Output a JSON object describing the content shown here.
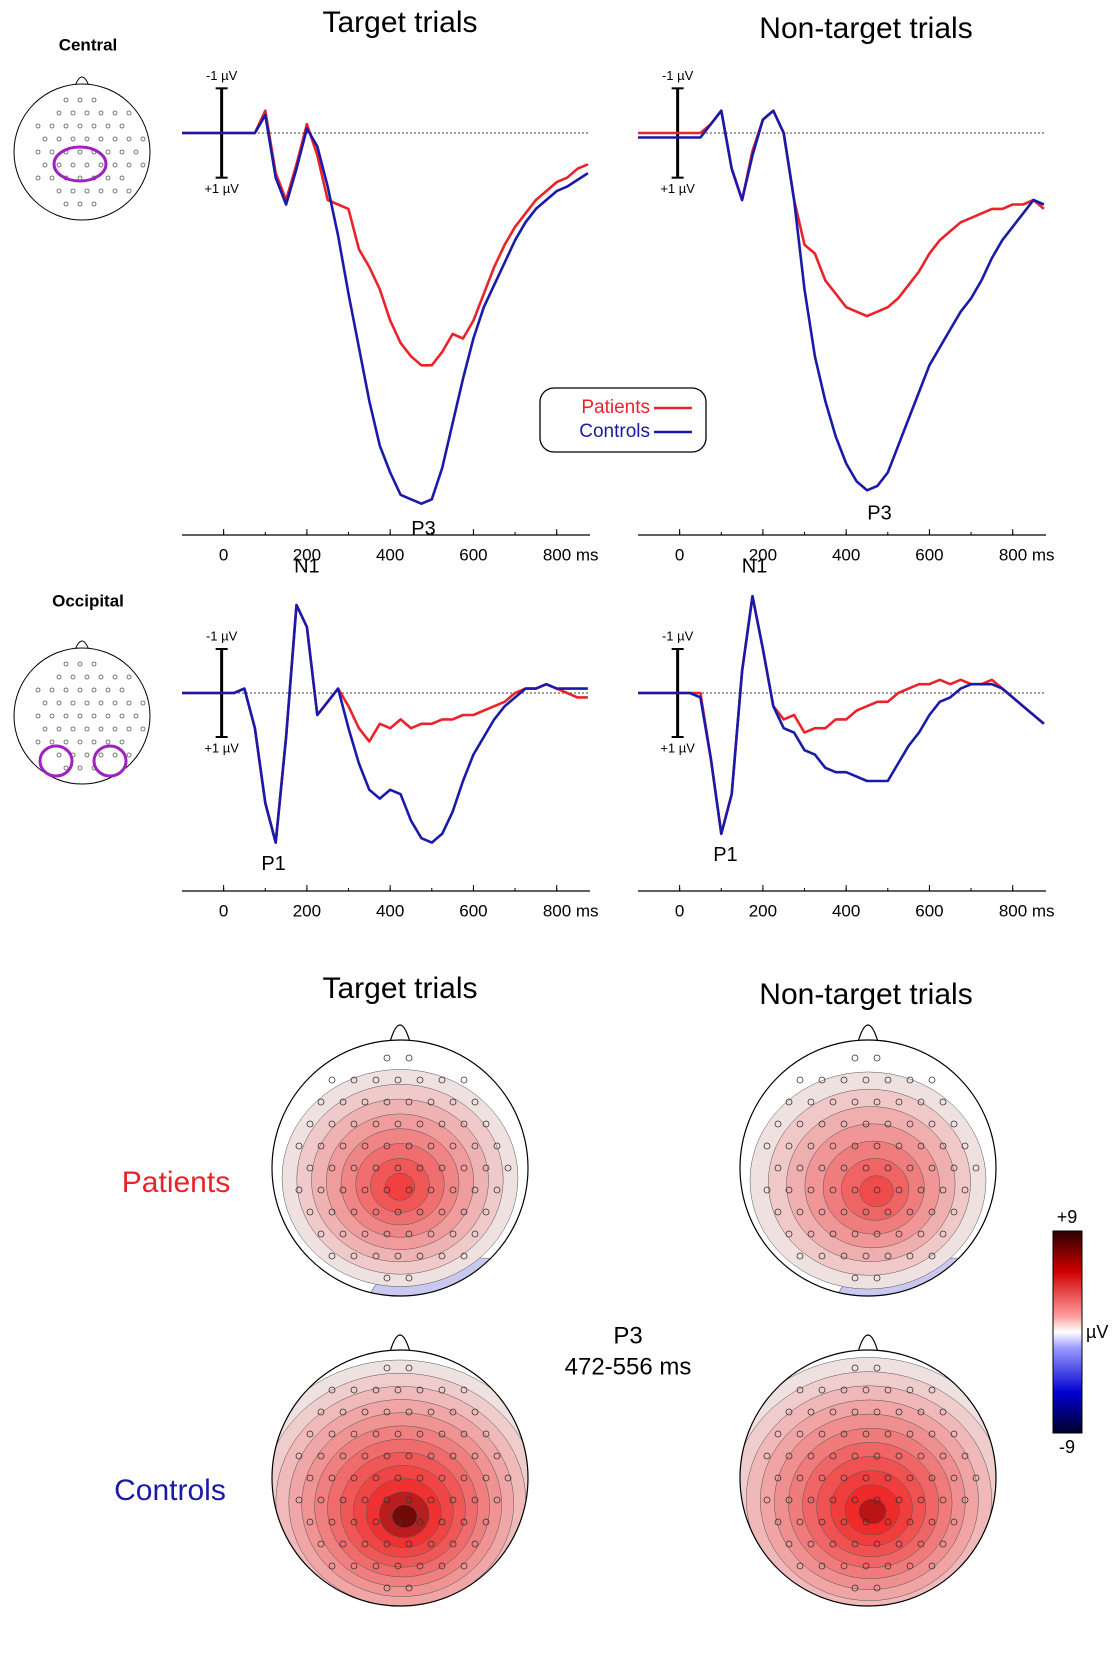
{
  "column_titles": [
    "Target trials",
    "Non-target trials"
  ],
  "row_titles": [
    "Central",
    "Occipital"
  ],
  "chart_data": [
    {
      "type": "line",
      "legend": true,
      "y_inverted": true,
      "x": [
        -100,
        -75,
        -50,
        -25,
        0,
        25,
        50,
        75,
        100,
        125,
        150,
        175,
        200,
        225,
        250,
        275,
        300,
        325,
        350,
        375,
        400,
        425,
        450,
        475,
        500,
        525,
        550,
        575,
        600,
        625,
        650,
        675,
        700,
        725,
        750,
        775,
        800,
        825,
        850,
        875
      ],
      "series": [
        {
          "name": "Patients",
          "color": "#e8242a",
          "values": [
            0,
            0,
            0,
            0,
            0,
            0,
            0,
            0,
            -0.5,
            0.9,
            1.5,
            0.7,
            -0.2,
            0.5,
            1.5,
            1.6,
            1.7,
            2.6,
            3.0,
            3.5,
            4.2,
            4.7,
            5.0,
            5.2,
            5.2,
            4.9,
            4.5,
            4.6,
            4.2,
            3.6,
            3.0,
            2.5,
            2.1,
            1.8,
            1.5,
            1.3,
            1.1,
            1.0,
            0.8,
            0.7
          ]
        },
        {
          "name": "Controls",
          "color": "#1a1aa8",
          "values": [
            0,
            0,
            0,
            0,
            0,
            0,
            0,
            0,
            -0.4,
            1.0,
            1.6,
            0.8,
            -0.1,
            0.3,
            1.2,
            2.3,
            3.6,
            4.8,
            6.0,
            7.0,
            7.6,
            8.1,
            8.2,
            8.3,
            8.2,
            7.5,
            6.5,
            5.5,
            4.6,
            3.9,
            3.4,
            2.9,
            2.4,
            2.0,
            1.7,
            1.5,
            1.3,
            1.2,
            1.05,
            0.9
          ]
        }
      ],
      "xlim": [
        -100,
        880
      ],
      "xticks": [
        0,
        200,
        400,
        600,
        {
          "value": 800,
          "label": "800 ms"
        }
      ],
      "ylim": [
        -1.5,
        9
      ],
      "yticks": [
        {
          "value": -1,
          "label": "-1 µV"
        },
        {
          "value": 1,
          "label": "+1 µV"
        }
      ],
      "annotations": [
        "P3"
      ]
    },
    {
      "type": "line",
      "y_inverted": true,
      "x": [
        -100,
        -75,
        -50,
        -25,
        0,
        25,
        50,
        75,
        100,
        125,
        150,
        175,
        200,
        225,
        250,
        275,
        300,
        325,
        350,
        375,
        400,
        425,
        450,
        475,
        500,
        525,
        550,
        575,
        600,
        625,
        650,
        675,
        700,
        725,
        750,
        775,
        800,
        825,
        850,
        875
      ],
      "series": [
        {
          "name": "Patients",
          "color": "#e8242a",
          "values": [
            0,
            0,
            0,
            0,
            0,
            0,
            0,
            -0.2,
            -0.5,
            0.8,
            1.5,
            0.4,
            -0.3,
            -0.5,
            0,
            1.5,
            2.5,
            2.7,
            3.3,
            3.6,
            3.9,
            4.0,
            4.1,
            4.0,
            3.9,
            3.7,
            3.4,
            3.1,
            2.7,
            2.4,
            2.2,
            2.0,
            1.9,
            1.8,
            1.7,
            1.7,
            1.6,
            1.6,
            1.5,
            1.7
          ]
        },
        {
          "name": "Controls",
          "color": "#1a1aa8",
          "values": [
            0.1,
            0.1,
            0.1,
            0.1,
            0.1,
            0.1,
            0.1,
            -0.2,
            -0.5,
            0.8,
            1.5,
            0.5,
            -0.3,
            -0.5,
            0,
            1.5,
            3.5,
            5.0,
            6.0,
            6.8,
            7.4,
            7.8,
            8.0,
            7.9,
            7.6,
            7.0,
            6.4,
            5.8,
            5.2,
            4.8,
            4.4,
            4.0,
            3.7,
            3.3,
            2.8,
            2.4,
            2.1,
            1.8,
            1.5,
            1.6
          ]
        }
      ],
      "xlim": [
        -100,
        880
      ],
      "xticks": [
        0,
        200,
        400,
        600,
        {
          "value": 800,
          "label": "800 ms"
        }
      ],
      "ylim": [
        -1.5,
        9
      ],
      "yticks": [
        {
          "value": -1,
          "label": "-1 µV"
        },
        {
          "value": 1,
          "label": "+1 µV"
        }
      ],
      "annotations": [
        "P3"
      ]
    },
    {
      "type": "line",
      "y_inverted": true,
      "x": [
        -100,
        -75,
        -50,
        -25,
        0,
        25,
        50,
        75,
        100,
        125,
        150,
        175,
        200,
        225,
        250,
        275,
        300,
        325,
        350,
        375,
        400,
        425,
        450,
        475,
        500,
        525,
        550,
        575,
        600,
        625,
        650,
        675,
        700,
        725,
        750,
        775,
        800,
        825,
        850,
        875
      ],
      "series": [
        {
          "name": "Patients",
          "color": "#e8242a",
          "values": [
            0,
            0,
            0,
            0,
            0,
            0,
            -0.1,
            0.8,
            2.5,
            3.4,
            1.0,
            -2.0,
            -1.5,
            0.5,
            0.2,
            -0.1,
            0.3,
            0.8,
            1.1,
            0.7,
            0.8,
            0.6,
            0.8,
            0.7,
            0.7,
            0.6,
            0.6,
            0.5,
            0.5,
            0.4,
            0.3,
            0.2,
            0,
            -0.1,
            -0.1,
            -0.2,
            -0.1,
            0,
            0.1,
            0.1
          ]
        },
        {
          "name": "Controls",
          "color": "#1a1aa8",
          "values": [
            0,
            0,
            0,
            0,
            0,
            0,
            -0.1,
            0.8,
            2.5,
            3.4,
            1.0,
            -2.0,
            -1.5,
            0.5,
            0.2,
            -0.1,
            0.8,
            1.6,
            2.2,
            2.4,
            2.2,
            2.3,
            2.9,
            3.3,
            3.4,
            3.2,
            2.7,
            2.0,
            1.4,
            1.0,
            0.6,
            0.3,
            0.1,
            -0.1,
            -0.1,
            -0.2,
            -0.1,
            -0.1,
            -0.1,
            -0.1
          ]
        }
      ],
      "xlim": [
        -100,
        880
      ],
      "xticks": [
        0,
        200,
        400,
        600,
        {
          "value": 800,
          "label": "800 ms"
        }
      ],
      "ylim": [
        -2.5,
        4.5
      ],
      "yticks": [
        {
          "value": -1,
          "label": "-1 µV"
        },
        {
          "value": 1,
          "label": "+1 µV"
        }
      ],
      "annotations": [
        "N1",
        "P1"
      ]
    },
    {
      "type": "line",
      "y_inverted": true,
      "x": [
        -100,
        -75,
        -50,
        -25,
        0,
        25,
        50,
        75,
        100,
        125,
        150,
        175,
        200,
        225,
        250,
        275,
        300,
        325,
        350,
        375,
        400,
        425,
        450,
        475,
        500,
        525,
        550,
        575,
        600,
        625,
        650,
        675,
        700,
        725,
        750,
        775,
        800,
        825,
        850,
        875
      ],
      "series": [
        {
          "name": "Patients",
          "color": "#e8242a",
          "values": [
            0,
            0,
            0,
            0,
            0,
            0,
            0,
            1.5,
            3.2,
            2.3,
            -0.5,
            -2.2,
            -1.0,
            0.3,
            0.6,
            0.5,
            0.9,
            0.8,
            0.8,
            0.6,
            0.6,
            0.4,
            0.3,
            0.2,
            0.2,
            0,
            -0.1,
            -0.2,
            -0.2,
            -0.3,
            -0.2,
            -0.3,
            -0.2,
            -0.2,
            -0.3,
            -0.1,
            0.1,
            0.3,
            0.5,
            0.7
          ]
        },
        {
          "name": "Controls",
          "color": "#1a1aa8",
          "values": [
            0,
            0,
            0,
            0,
            0,
            0,
            0.1,
            1.5,
            3.2,
            2.3,
            -0.5,
            -2.2,
            -1.0,
            0.3,
            0.8,
            0.9,
            1.3,
            1.4,
            1.7,
            1.8,
            1.8,
            1.9,
            2.0,
            2.0,
            2.0,
            1.6,
            1.2,
            0.9,
            0.5,
            0.2,
            0.1,
            -0.1,
            -0.2,
            -0.2,
            -0.2,
            -0.1,
            0.1,
            0.3,
            0.5,
            0.7
          ]
        }
      ],
      "xlim": [
        -100,
        880
      ],
      "xticks": [
        0,
        200,
        400,
        600,
        {
          "value": 800,
          "label": "800 ms"
        }
      ],
      "ylim": [
        -2.5,
        4.5
      ],
      "yticks": [
        {
          "value": -1,
          "label": "-1 µV"
        },
        {
          "value": 1,
          "label": "+1 µV"
        }
      ],
      "annotations": [
        "N1",
        "P1"
      ]
    }
  ],
  "topography": {
    "column_titles": [
      "Target trials",
      "Non-target trials"
    ],
    "row_titles": [
      "Patients",
      "Controls"
    ],
    "component": "P3",
    "window": "472-556 ms",
    "colorbar": {
      "ticks": [
        {
          "value": 9,
          "label": "+9"
        },
        -9
      ],
      "unit": "µV"
    }
  }
}
